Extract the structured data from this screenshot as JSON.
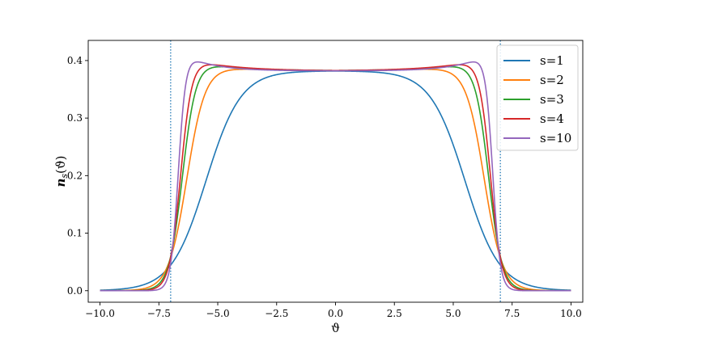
{
  "chart_data": {
    "type": "line",
    "title": "",
    "xlabel": "ϑ",
    "ylabel": "n_s(ϑ)",
    "ylabel_main": "n",
    "ylabel_sub": "s",
    "ylabel_tail": "(ϑ)",
    "xlim": [
      -10.5,
      10.5
    ],
    "ylim": [
      -0.02,
      0.435
    ],
    "xticks": [
      -10.0,
      -7.5,
      -5.0,
      -2.5,
      0.0,
      2.5,
      5.0,
      7.5,
      10.0
    ],
    "xtick_labels": [
      "−10.0",
      "−7.5",
      "−5.0",
      "−2.5",
      "0.0",
      "2.5",
      "5.0",
      "7.5",
      "10.0"
    ],
    "yticks": [
      0.0,
      0.1,
      0.2,
      0.3,
      0.4
    ],
    "ytick_labels": [
      "0.0",
      "0.1",
      "0.2",
      "0.3",
      "0.4"
    ],
    "grid": false,
    "legend_position": "top-right",
    "vertical_lines": [
      -7.0,
      7.0
    ],
    "vertical_line_color": "#1f77b4",
    "plateau": 0.382,
    "series": [
      {
        "name": "s=1",
        "s": 1,
        "color": "#1f77b4"
      },
      {
        "name": "s=2",
        "s": 2,
        "color": "#ff7f0e"
      },
      {
        "name": "s=3",
        "s": 3,
        "color": "#2ca02c"
      },
      {
        "name": "s=4",
        "s": 4,
        "color": "#d62728"
      },
      {
        "name": "s=10",
        "s": 10,
        "color": "#9467bd"
      }
    ]
  }
}
